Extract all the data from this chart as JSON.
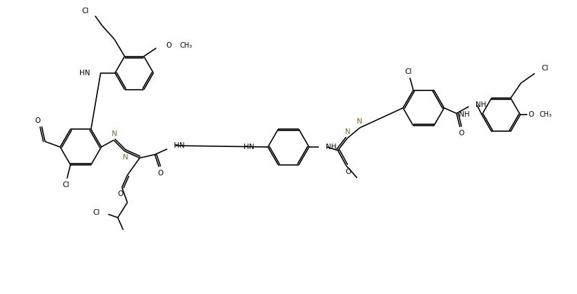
{
  "bg_color": "#ffffff",
  "lc": "#000000",
  "nc": "#8B6914",
  "lw": 1.2,
  "fs": 7.5,
  "figsize": [
    8.37,
    4.26
  ],
  "dpi": 100,
  "xlim": [
    0,
    837
  ],
  "ylim": [
    0,
    426
  ]
}
